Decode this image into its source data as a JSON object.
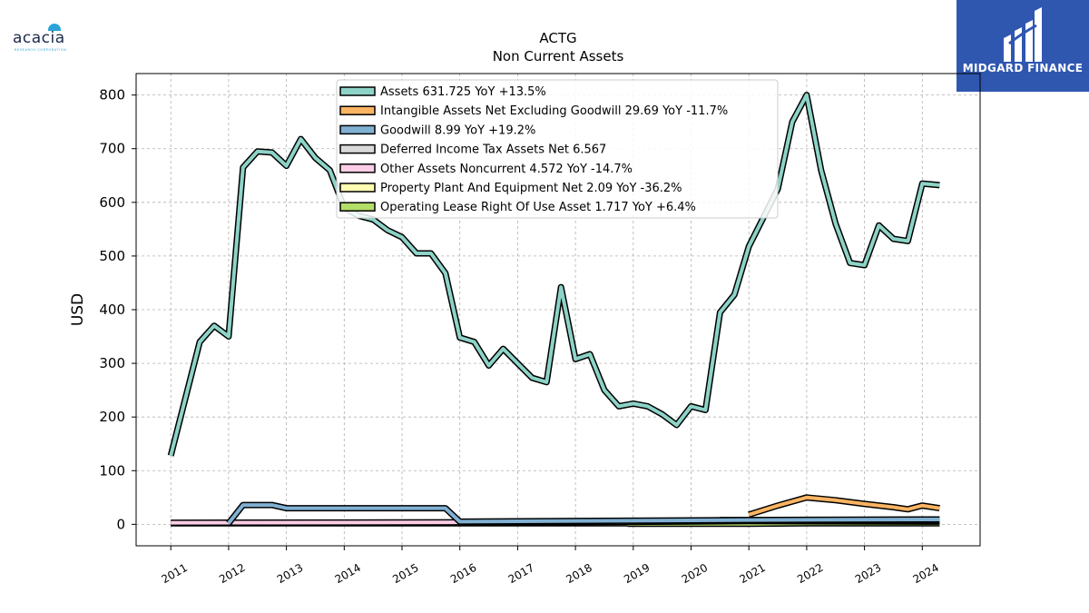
{
  "brand": {
    "left_logo_text": "acacia",
    "left_logo_sub": "RESEARCH CORPORATION",
    "right_logo_text": "MIDGARD FINANCE"
  },
  "chart_data": {
    "type": "line",
    "title": "ACTG",
    "subtitle": "Non Current  Assets",
    "ylabel": "USD",
    "xlabel": "",
    "ylim": [
      -40,
      840
    ],
    "xlim": [
      2010.4,
      2025.0
    ],
    "yticks": [
      0,
      100,
      200,
      300,
      400,
      500,
      600,
      700,
      800
    ],
    "xticks": [
      "2011",
      "2012",
      "2013",
      "2014",
      "2015",
      "2016",
      "2017",
      "2018",
      "2019",
      "2020",
      "2021",
      "2022",
      "2023",
      "2024"
    ],
    "grid": true,
    "legend_position": "top-center",
    "series": [
      {
        "name": "Assets  631.725 YoY +13.5%",
        "color": "#8dd3c7",
        "points": [
          [
            2011.0,
            128
          ],
          [
            2011.5,
            340
          ],
          [
            2011.75,
            370
          ],
          [
            2012.0,
            350
          ],
          [
            2012.25,
            665
          ],
          [
            2012.5,
            695
          ],
          [
            2012.75,
            693
          ],
          [
            2013.0,
            668
          ],
          [
            2013.25,
            718
          ],
          [
            2013.5,
            683
          ],
          [
            2013.75,
            660
          ],
          [
            2014.0,
            590
          ],
          [
            2014.25,
            575
          ],
          [
            2014.5,
            568
          ],
          [
            2014.75,
            548
          ],
          [
            2015.0,
            535
          ],
          [
            2015.25,
            505
          ],
          [
            2015.5,
            505
          ],
          [
            2015.75,
            468
          ],
          [
            2016.0,
            348
          ],
          [
            2016.25,
            340
          ],
          [
            2016.5,
            296
          ],
          [
            2016.75,
            327
          ],
          [
            2017.0,
            300
          ],
          [
            2017.25,
            273
          ],
          [
            2017.5,
            265
          ],
          [
            2017.75,
            442
          ],
          [
            2018.0,
            308
          ],
          [
            2018.25,
            317
          ],
          [
            2018.5,
            250
          ],
          [
            2018.75,
            220
          ],
          [
            2019.0,
            225
          ],
          [
            2019.25,
            220
          ],
          [
            2019.5,
            205
          ],
          [
            2019.75,
            185
          ],
          [
            2020.0,
            220
          ],
          [
            2020.25,
            213
          ],
          [
            2020.5,
            395
          ],
          [
            2020.75,
            428
          ],
          [
            2021.0,
            518
          ],
          [
            2021.5,
            625
          ],
          [
            2021.75,
            750
          ],
          [
            2022.0,
            800
          ],
          [
            2022.25,
            660
          ],
          [
            2022.5,
            560
          ],
          [
            2022.75,
            487
          ],
          [
            2023.0,
            483
          ],
          [
            2023.25,
            557
          ],
          [
            2023.5,
            532
          ],
          [
            2023.75,
            528
          ],
          [
            2024.0,
            635
          ],
          [
            2024.3,
            632
          ]
        ]
      },
      {
        "name": "Intangible Assets Net Excluding Goodwill  29.69 YoY -11.7%",
        "color": "#fdb462",
        "points": [
          [
            2021.0,
            18
          ],
          [
            2021.5,
            35
          ],
          [
            2022.0,
            50
          ],
          [
            2022.5,
            45
          ],
          [
            2023.0,
            38
          ],
          [
            2023.5,
            32
          ],
          [
            2023.75,
            28
          ],
          [
            2024.0,
            35
          ],
          [
            2024.3,
            30
          ]
        ]
      },
      {
        "name": "Goodwill  8.99 YoY +19.2%",
        "color": "#80b1d3",
        "points": [
          [
            2012.0,
            2
          ],
          [
            2012.25,
            36
          ],
          [
            2012.75,
            36
          ],
          [
            2013.0,
            30
          ],
          [
            2015.75,
            30
          ],
          [
            2016.0,
            5
          ],
          [
            2021.0,
            8
          ],
          [
            2024.3,
            9
          ]
        ]
      },
      {
        "name": "Deferred Income Tax Assets Net  6.567",
        "color": "#d9d9d9",
        "points": [
          [
            2020.5,
            8
          ],
          [
            2024.3,
            7
          ]
        ]
      },
      {
        "name": "Other Assets Noncurrent  4.572 YoY -14.7%",
        "color": "#fccde5",
        "points": [
          [
            2011.0,
            3
          ],
          [
            2018.0,
            4
          ],
          [
            2021.0,
            6
          ],
          [
            2024.3,
            5
          ]
        ]
      },
      {
        "name": "Property Plant And Equipment Net  2.09 YoY -36.2%",
        "color": "#ffffb3",
        "points": [
          [
            2011.0,
            2
          ],
          [
            2015.0,
            2
          ],
          [
            2018.9,
            2
          ]
        ]
      },
      {
        "name": "Operating Lease Right Of Use Asset  1.717 YoY +6.4%",
        "color": "#b3de69",
        "points": [
          [
            2018.9,
            1
          ],
          [
            2021.0,
            1
          ],
          [
            2022.0,
            2
          ],
          [
            2024.3,
            2
          ]
        ]
      }
    ]
  }
}
